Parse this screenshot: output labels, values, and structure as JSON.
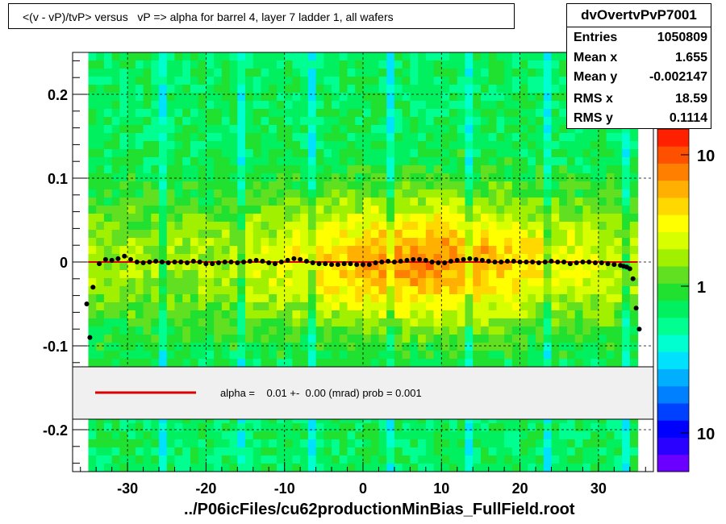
{
  "title": "<(v - vP)/tvP> versus   vP => alpha for barrel 4, layer 7 ladder 1, all wafers",
  "stats": {
    "name": "dvOvertvPvP7001",
    "rows": [
      {
        "key": "Entries",
        "value": "1050809"
      },
      {
        "key": "Mean x",
        "value": "1.655"
      },
      {
        "key": "Mean y",
        "value": "-0.002147"
      },
      {
        "key": "RMS x",
        "value": "18.59"
      },
      {
        "key": "RMS y",
        "value": "0.1114"
      }
    ]
  },
  "fit_legend": "alpha =    0.01 +-  0.00 (mrad) prob = 0.001",
  "footer": "../P06icFiles/cu62productionMinBias_FullField.root",
  "colors": {
    "fit_line": "#dd0000",
    "profile_points": "#000000",
    "palette": [
      "#6a00ff",
      "#2a00ff",
      "#0000ff",
      "#0040ff",
      "#0080ff",
      "#00b0ff",
      "#00e0ff",
      "#00ffd0",
      "#00ff90",
      "#00f060",
      "#20e030",
      "#60e020",
      "#a0f000",
      "#d8ff00",
      "#ffff00",
      "#ffd800",
      "#ffb000",
      "#ff8000",
      "#ff5000",
      "#ff2000"
    ]
  },
  "chart_data": {
    "type": "heatmap",
    "xlim": [
      -37,
      37
    ],
    "ylim": [
      -0.25,
      0.25
    ],
    "x_ticks": [
      -30,
      -20,
      -10,
      0,
      10,
      20,
      30
    ],
    "x_tick_labels": [
      "-30",
      "-20",
      "-10",
      "0",
      "10",
      "20",
      "30"
    ],
    "y_ticks": [
      -0.2,
      -0.1,
      0,
      0.1,
      0.2
    ],
    "y_tick_labels": [
      "-0.2",
      "-0.1",
      "0",
      "0.1",
      "0.2"
    ],
    "z_scale": "log",
    "z_tick_labels": [
      "10",
      "1",
      "10"
    ],
    "grid": true,
    "profile": {
      "x": [
        -35.2,
        -34.8,
        -34.4,
        -33.6,
        -32.8,
        -32.0,
        -31.2,
        -30.4,
        -29.6,
        -28.8,
        -28.0,
        -27.2,
        -26.4,
        -25.6,
        -24.8,
        -24.0,
        -23.2,
        -22.4,
        -21.6,
        -20.8,
        -20.0,
        -19.2,
        -18.4,
        -17.6,
        -16.8,
        -16.0,
        -15.2,
        -14.4,
        -13.6,
        -12.8,
        -12.0,
        -11.2,
        -10.4,
        -9.6,
        -8.8,
        -8.0,
        -7.2,
        -6.4,
        -5.6,
        -4.8,
        -4.0,
        -3.2,
        -2.4,
        -1.6,
        -0.8,
        0.0,
        0.8,
        1.6,
        2.4,
        3.2,
        4.0,
        4.8,
        5.6,
        6.4,
        7.2,
        8.0,
        8.8,
        9.6,
        10.4,
        11.2,
        12.0,
        12.8,
        13.6,
        14.4,
        15.2,
        16.0,
        16.8,
        17.6,
        18.4,
        19.2,
        20.0,
        20.8,
        21.6,
        22.4,
        23.2,
        24.0,
        24.8,
        25.6,
        26.4,
        27.2,
        28.0,
        28.8,
        29.6,
        30.4,
        31.2,
        32.0,
        32.8,
        33.2,
        33.6,
        34.0,
        34.4,
        34.8
      ],
      "y": [
        -0.05,
        -0.09,
        -0.03,
        -0.002,
        0.003,
        0.002,
        0.004,
        0.007,
        0.003,
        0.0,
        -0.001,
        0.0,
        0.001,
        0.0,
        -0.001,
        0.0,
        0.0,
        -0.001,
        0.001,
        0.0,
        -0.002,
        -0.002,
        -0.001,
        0.0,
        0.0,
        -0.001,
        0.0,
        0.001,
        0.002,
        0.001,
        -0.001,
        -0.002,
        0.0,
        0.002,
        0.004,
        0.003,
        0.001,
        -0.001,
        -0.002,
        -0.002,
        -0.003,
        -0.003,
        -0.002,
        -0.002,
        -0.003,
        -0.003,
        -0.003,
        -0.001,
        0.0,
        0.001,
        0.0,
        0.001,
        0.002,
        0.003,
        0.003,
        0.002,
        0.0,
        -0.001,
        -0.001,
        0.001,
        0.002,
        0.003,
        0.004,
        0.003,
        0.002,
        0.001,
        0.0,
        0.0,
        0.001,
        0.001,
        0.0,
        0.0,
        0.0,
        -0.001,
        0.0,
        0.001,
        0.0,
        0.0,
        -0.002,
        -0.001,
        0.0,
        0.0,
        -0.001,
        -0.001,
        -0.002,
        -0.003,
        -0.004,
        -0.005,
        -0.006,
        -0.008,
        -0.02,
        -0.055
      ]
    },
    "fit_line": {
      "x": [
        -35,
        35
      ],
      "y": [
        0.0,
        0.0
      ]
    },
    "extra_points": [
      {
        "x": 35.2,
        "y": -0.08
      }
    ]
  }
}
